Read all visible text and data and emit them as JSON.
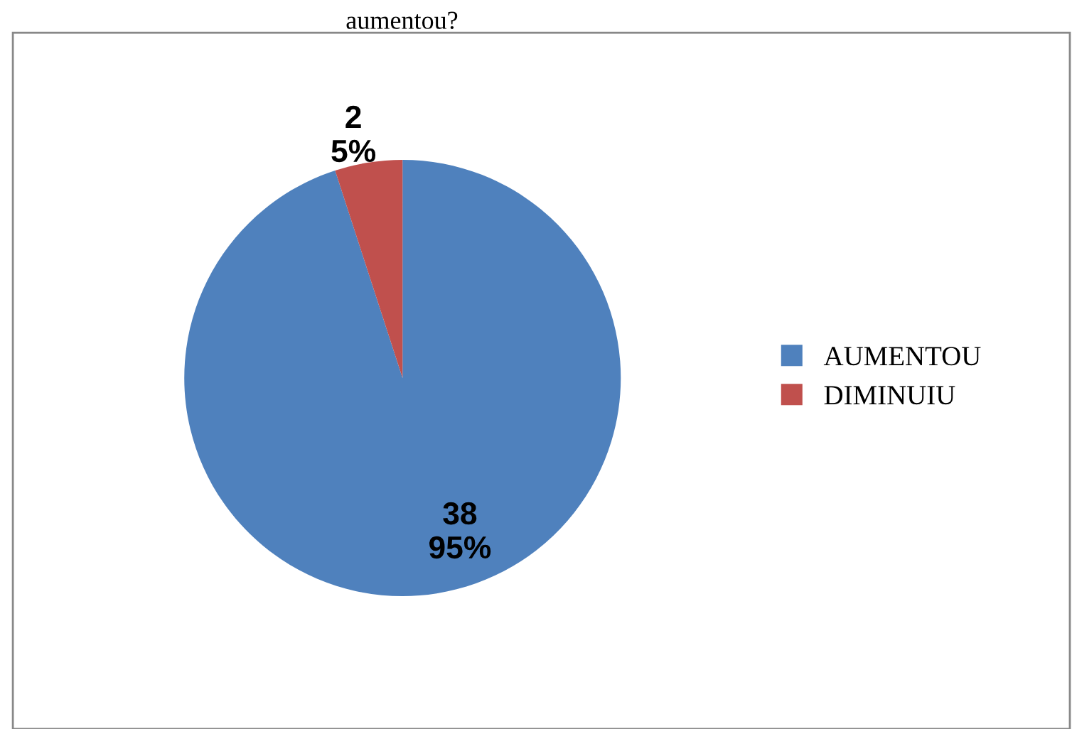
{
  "chart_data": {
    "type": "pie",
    "title": "aumentou?",
    "categories": [
      "AUMENTOU",
      "DIMINUIU"
    ],
    "values": [
      38,
      2
    ],
    "colors": [
      "#4f81bd",
      "#c0504d"
    ],
    "value_labels": [
      "38\n95%",
      "2\n5%"
    ],
    "legend": "right"
  }
}
